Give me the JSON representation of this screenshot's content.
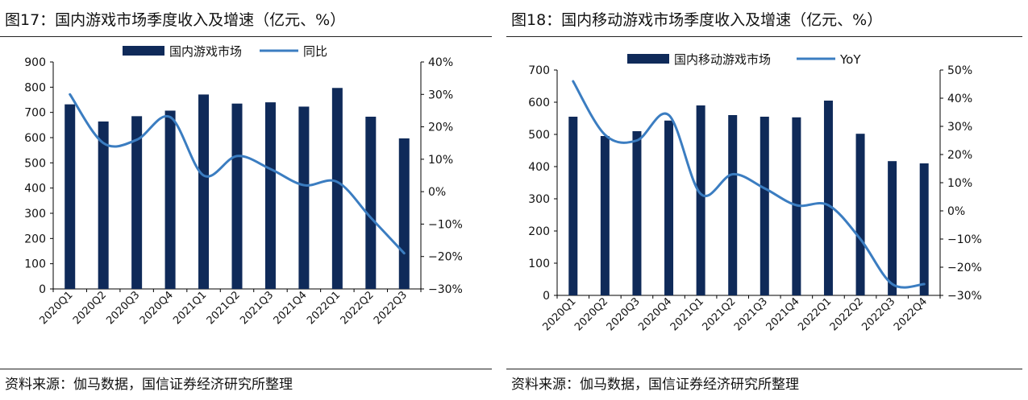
{
  "colors": {
    "bar": "#0f2a59",
    "line": "#3b7dc1",
    "axis": "#000000"
  },
  "charts": [
    {
      "title": "图17：国内游戏市场季度收入及增速（亿元、%）",
      "source": "资料来源：伽马数据，国信证券经济研究所整理",
      "chart_data": {
        "type": "bar",
        "categories": [
          "2020Q1",
          "2020Q2",
          "2020Q3",
          "2020Q4",
          "2021Q1",
          "2021Q2",
          "2021Q3",
          "2021Q4",
          "2022Q1",
          "2022Q2",
          "2022Q3"
        ],
        "series": [
          {
            "name": "国内游戏市场",
            "type": "bar",
            "axis": "left",
            "values": [
              732,
              664,
              685,
              707,
              771,
              735,
              740,
              723,
              797,
              683,
              597
            ]
          },
          {
            "name": "同比",
            "type": "line",
            "axis": "right",
            "values": [
              30,
              15,
              16,
              23,
              5,
              11,
              7,
              2,
              3,
              -8,
              -19
            ]
          }
        ],
        "y_left": {
          "lim": [
            0,
            900
          ],
          "ticks": [
            "0",
            "100",
            "200",
            "300",
            "400",
            "500",
            "600",
            "700",
            "800",
            "900"
          ]
        },
        "y_right": {
          "lim": [
            -30,
            40
          ],
          "ticks": [
            "-30%",
            "-20%",
            "-10%",
            "0%",
            "10%",
            "20%",
            "30%",
            "40%"
          ]
        },
        "legend": "top-center",
        "grid": false
      }
    },
    {
      "title": "图18：国内移动游戏市场季度收入及增速（亿元、%）",
      "source": "资料来源：伽马数据，国信证券经济研究所整理",
      "chart_data": {
        "type": "bar",
        "categories": [
          "2020Q1",
          "2020Q2",
          "2020Q3",
          "2020Q4",
          "2021Q1",
          "2021Q2",
          "2021Q3",
          "2021Q4",
          "2022Q1",
          "2022Q2",
          "2022Q3",
          "2022Q4"
        ],
        "series": [
          {
            "name": "国内移动游戏市场",
            "type": "bar",
            "axis": "left",
            "values": [
              555,
              495,
              510,
              543,
              590,
              560,
              555,
              553,
              605,
              502,
              417,
              410
            ]
          },
          {
            "name": "YoY",
            "type": "line",
            "axis": "right",
            "values": [
              46,
              27,
              25,
              34,
              6,
              13,
              8,
              2,
              2,
              -10,
              -26,
              -26
            ]
          }
        ],
        "y_left": {
          "lim": [
            0,
            700
          ],
          "ticks": [
            "0",
            "100",
            "200",
            "300",
            "400",
            "500",
            "600",
            "700"
          ]
        },
        "y_right": {
          "lim": [
            -30,
            50
          ],
          "ticks": [
            "-30%",
            "-20%",
            "-10%",
            "0%",
            "10%",
            "20%",
            "30%",
            "40%",
            "50%"
          ]
        },
        "legend": "top-center",
        "grid": false
      }
    }
  ]
}
